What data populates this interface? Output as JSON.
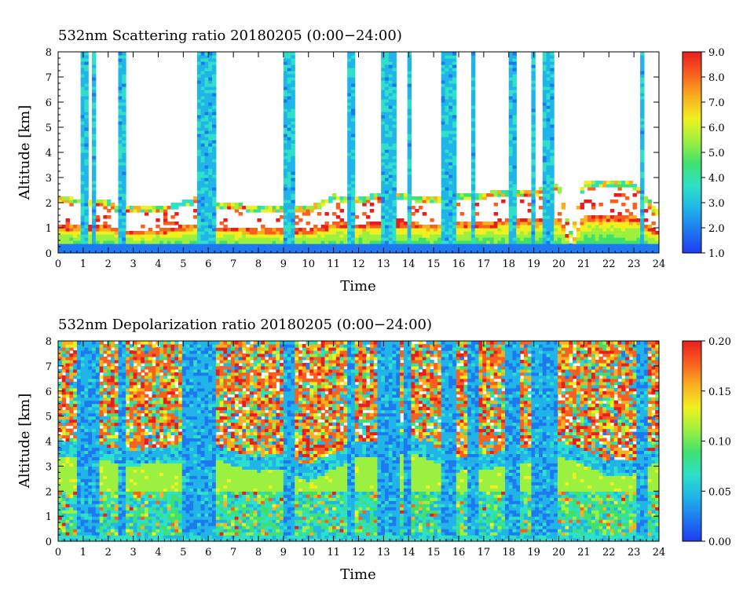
{
  "colors": {
    "scale": [
      "#1e3cf0",
      "#1e78f0",
      "#20b4e8",
      "#2ee0c8",
      "#40e070",
      "#9cf040",
      "#f0f020",
      "#f8b020",
      "#f86020",
      "#e81e1e"
    ]
  },
  "chart_data": [
    {
      "type": "heatmap",
      "title": "532nm Scattering ratio  20180205 (0:00−24:00)",
      "xlabel": "Time",
      "ylabel": "Altitude [km]",
      "xlim": [
        0,
        24
      ],
      "ylim": [
        0,
        8
      ],
      "x_ticks": [
        "0",
        "1",
        "2",
        "3",
        "4",
        "5",
        "6",
        "7",
        "8",
        "9",
        "10",
        "11",
        "12",
        "13",
        "14",
        "15",
        "16",
        "17",
        "18",
        "19",
        "20",
        "21",
        "22",
        "23",
        "24"
      ],
      "y_ticks": [
        "0",
        "1",
        "2",
        "3",
        "4",
        "5",
        "6",
        "7",
        "8"
      ],
      "colorbar": {
        "min": 1.0,
        "max": 9.0,
        "ticks": [
          "1.0",
          "2.0",
          "3.0",
          "4.0",
          "5.0",
          "6.0",
          "7.0",
          "8.0",
          "9.0"
        ]
      },
      "boundary_layer_top_km": {
        "x": [
          0,
          2,
          2.5,
          4,
          5.5,
          6,
          7,
          8,
          9,
          10,
          11,
          12,
          13,
          14,
          15,
          16,
          17,
          18,
          19,
          20,
          20.5,
          21,
          22,
          23,
          24
        ],
        "y": [
          2.1,
          2.0,
          1.7,
          1.7,
          2.1,
          1.9,
          1.9,
          1.7,
          1.8,
          1.7,
          2.2,
          2.1,
          2.3,
          2.2,
          2.1,
          2.3,
          2.3,
          2.4,
          2.4,
          2.6,
          0.6,
          2.8,
          2.8,
          2.7,
          1.5
        ]
      },
      "cloud_columns": [
        {
          "t_start": 0.95,
          "t_end": 1.15,
          "top_km": 8.0
        },
        {
          "t_start": 1.4,
          "t_end": 1.55,
          "top_km": 8.0
        },
        {
          "t_start": 2.4,
          "t_end": 2.7,
          "top_km": 8.0
        },
        {
          "t_start": 5.5,
          "t_end": 6.3,
          "top_km": 8.0
        },
        {
          "t_start": 8.95,
          "t_end": 9.4,
          "top_km": 8.0
        },
        {
          "t_start": 11.6,
          "t_end": 11.85,
          "top_km": 8.0
        },
        {
          "t_start": 12.9,
          "t_end": 13.5,
          "top_km": 8.0
        },
        {
          "t_start": 13.9,
          "t_end": 14.05,
          "top_km": 8.0
        },
        {
          "t_start": 15.35,
          "t_end": 15.55,
          "top_km": 8.0
        },
        {
          "t_start": 15.65,
          "t_end": 15.9,
          "top_km": 8.0
        },
        {
          "t_start": 16.45,
          "t_end": 16.7,
          "top_km": 8.0
        },
        {
          "t_start": 17.95,
          "t_end": 18.3,
          "top_km": 8.0
        },
        {
          "t_start": 18.95,
          "t_end": 19.1,
          "top_km": 8.0
        },
        {
          "t_start": 19.35,
          "t_end": 19.8,
          "top_km": 8.0
        },
        {
          "t_start": 23.2,
          "t_end": 23.4,
          "top_km": 8.0
        }
      ]
    },
    {
      "type": "heatmap",
      "title": "532nm Depolarization ratio  20180205 (0:00−24:00)",
      "xlabel": "Time",
      "ylabel": "Altitude [km]",
      "xlim": [
        0,
        24
      ],
      "ylim": [
        0,
        8
      ],
      "x_ticks": [
        "0",
        "1",
        "2",
        "3",
        "4",
        "5",
        "6",
        "7",
        "8",
        "9",
        "10",
        "11",
        "12",
        "13",
        "14",
        "15",
        "16",
        "17",
        "18",
        "19",
        "20",
        "21",
        "22",
        "23",
        "24"
      ],
      "y_ticks": [
        "0",
        "1",
        "2",
        "3",
        "4",
        "5",
        "6",
        "7",
        "8"
      ],
      "colorbar": {
        "min": 0.0,
        "max": 0.2,
        "ticks": [
          "0.00",
          "0.05",
          "0.10",
          "0.15",
          "0.20"
        ]
      },
      "noise_floor_km": {
        "x": [
          0,
          1,
          2,
          3,
          4,
          5,
          6,
          7,
          8,
          9,
          10,
          11,
          12,
          13,
          14,
          15,
          16,
          17,
          18,
          19,
          20,
          21,
          22,
          23,
          24
        ],
        "y": [
          4.0,
          4.0,
          3.8,
          3.6,
          3.8,
          3.7,
          4.0,
          3.6,
          3.4,
          3.5,
          3.0,
          3.5,
          4.0,
          4.0,
          4.2,
          3.8,
          3.4,
          3.5,
          3.6,
          3.8,
          4.0,
          3.7,
          3.2,
          3.3,
          3.8
        ]
      },
      "cloud_columns": [
        {
          "t_start": 0.8,
          "t_end": 1.6,
          "top_km": 8.0
        },
        {
          "t_start": 2.35,
          "t_end": 2.7,
          "top_km": 8.0
        },
        {
          "t_start": 5.0,
          "t_end": 6.3,
          "top_km": 8.0
        },
        {
          "t_start": 8.95,
          "t_end": 9.45,
          "top_km": 8.0
        },
        {
          "t_start": 11.55,
          "t_end": 11.9,
          "top_km": 8.0
        },
        {
          "t_start": 12.8,
          "t_end": 13.6,
          "top_km": 8.0
        },
        {
          "t_start": 13.85,
          "t_end": 14.1,
          "top_km": 8.0
        },
        {
          "t_start": 15.3,
          "t_end": 15.95,
          "top_km": 8.0
        },
        {
          "t_start": 16.4,
          "t_end": 16.75,
          "top_km": 8.0
        },
        {
          "t_start": 17.9,
          "t_end": 18.4,
          "top_km": 8.0
        },
        {
          "t_start": 18.9,
          "t_end": 19.9,
          "top_km": 8.0
        },
        {
          "t_start": 23.1,
          "t_end": 23.5,
          "top_km": 8.0
        }
      ]
    }
  ]
}
